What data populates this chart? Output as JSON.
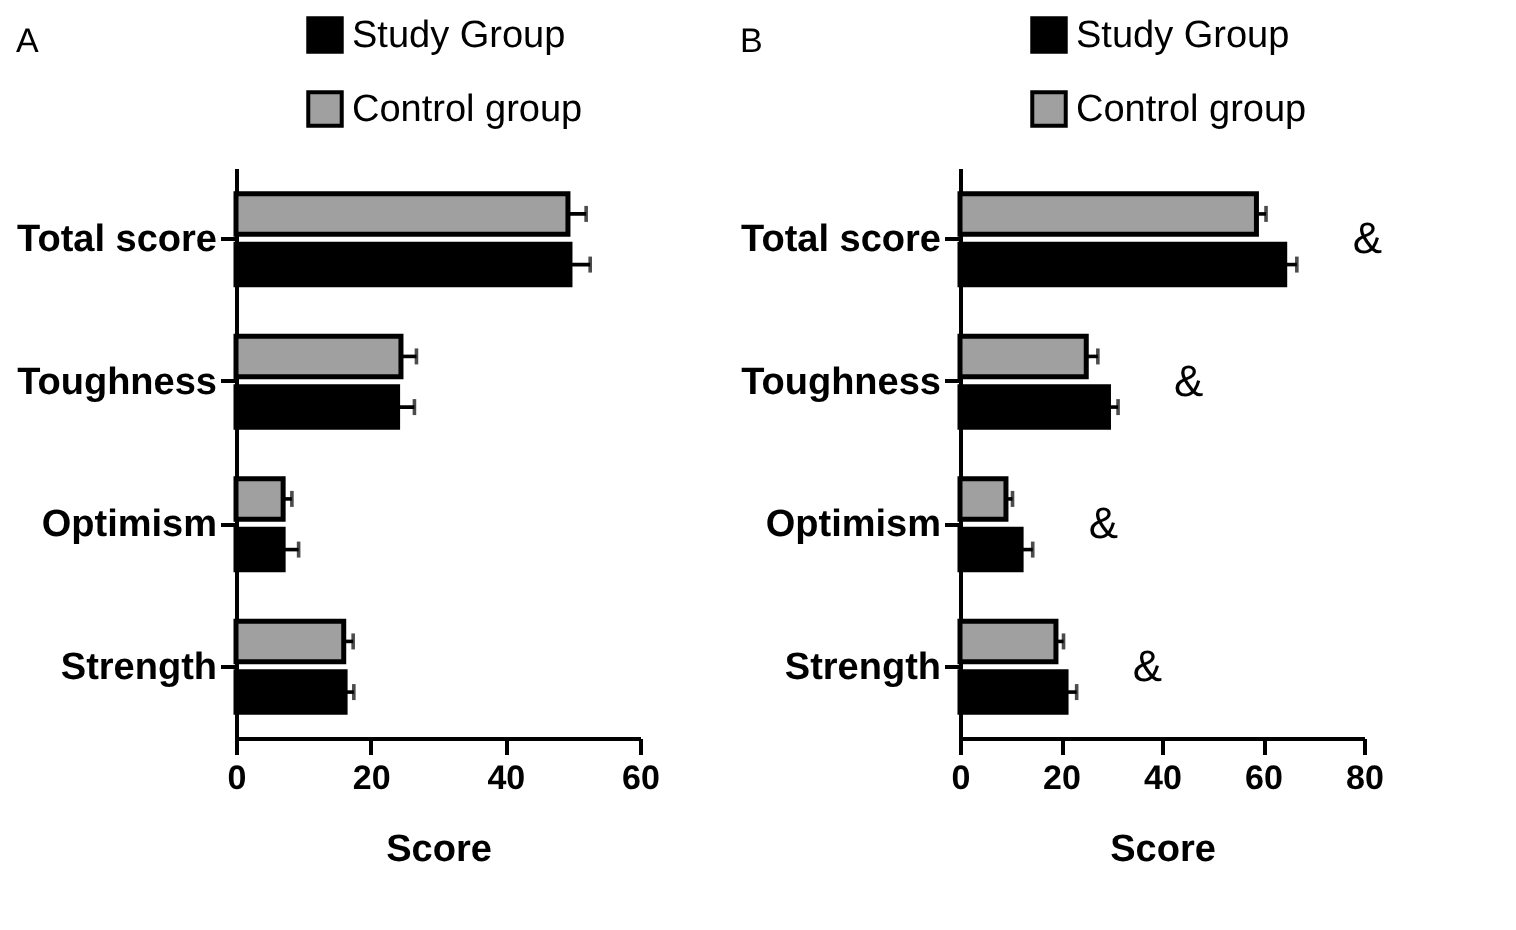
{
  "chart_data": [
    {
      "type": "bar",
      "title": "A",
      "orientation": "horizontal",
      "xlabel": "Score",
      "categories": [
        "Total score",
        "Toughness",
        "Optimism",
        "Strength"
      ],
      "xlim": [
        0,
        60
      ],
      "xticks": [
        0,
        20,
        40,
        60
      ],
      "grid": false,
      "legend": "top",
      "series": [
        {
          "name": "Control group",
          "color": "#a0a0a0",
          "values": [
            49.3,
            24.5,
            7,
            16
          ],
          "errors": [
            2.7,
            2.3,
            1.3,
            1.4
          ]
        },
        {
          "name": "Study Group",
          "color": "#000000",
          "values": [
            49.6,
            24,
            7,
            16.2
          ],
          "errors": [
            3,
            2.5,
            2.3,
            1.3
          ]
        }
      ]
    },
    {
      "type": "bar",
      "title": "B",
      "orientation": "horizontal",
      "xlabel": "Score",
      "categories": [
        "Total score",
        "Toughness",
        "Optimism",
        "Strength"
      ],
      "xlim": [
        0,
        80
      ],
      "xticks": [
        0,
        20,
        40,
        60,
        80
      ],
      "grid": false,
      "legend": "top",
      "annotations": [
        "&",
        "&",
        "&",
        "&"
      ],
      "series": [
        {
          "name": "Control group",
          "color": "#a0a0a0",
          "values": [
            58.7,
            25,
            9.1,
            19
          ],
          "errors": [
            1.9,
            2.3,
            1.3,
            1.5
          ]
        },
        {
          "name": "Study Group",
          "color": "#000000",
          "values": [
            64.3,
            29.4,
            12.1,
            21
          ],
          "errors": [
            2.4,
            1.9,
            2.3,
            2.1
          ]
        }
      ]
    }
  ]
}
